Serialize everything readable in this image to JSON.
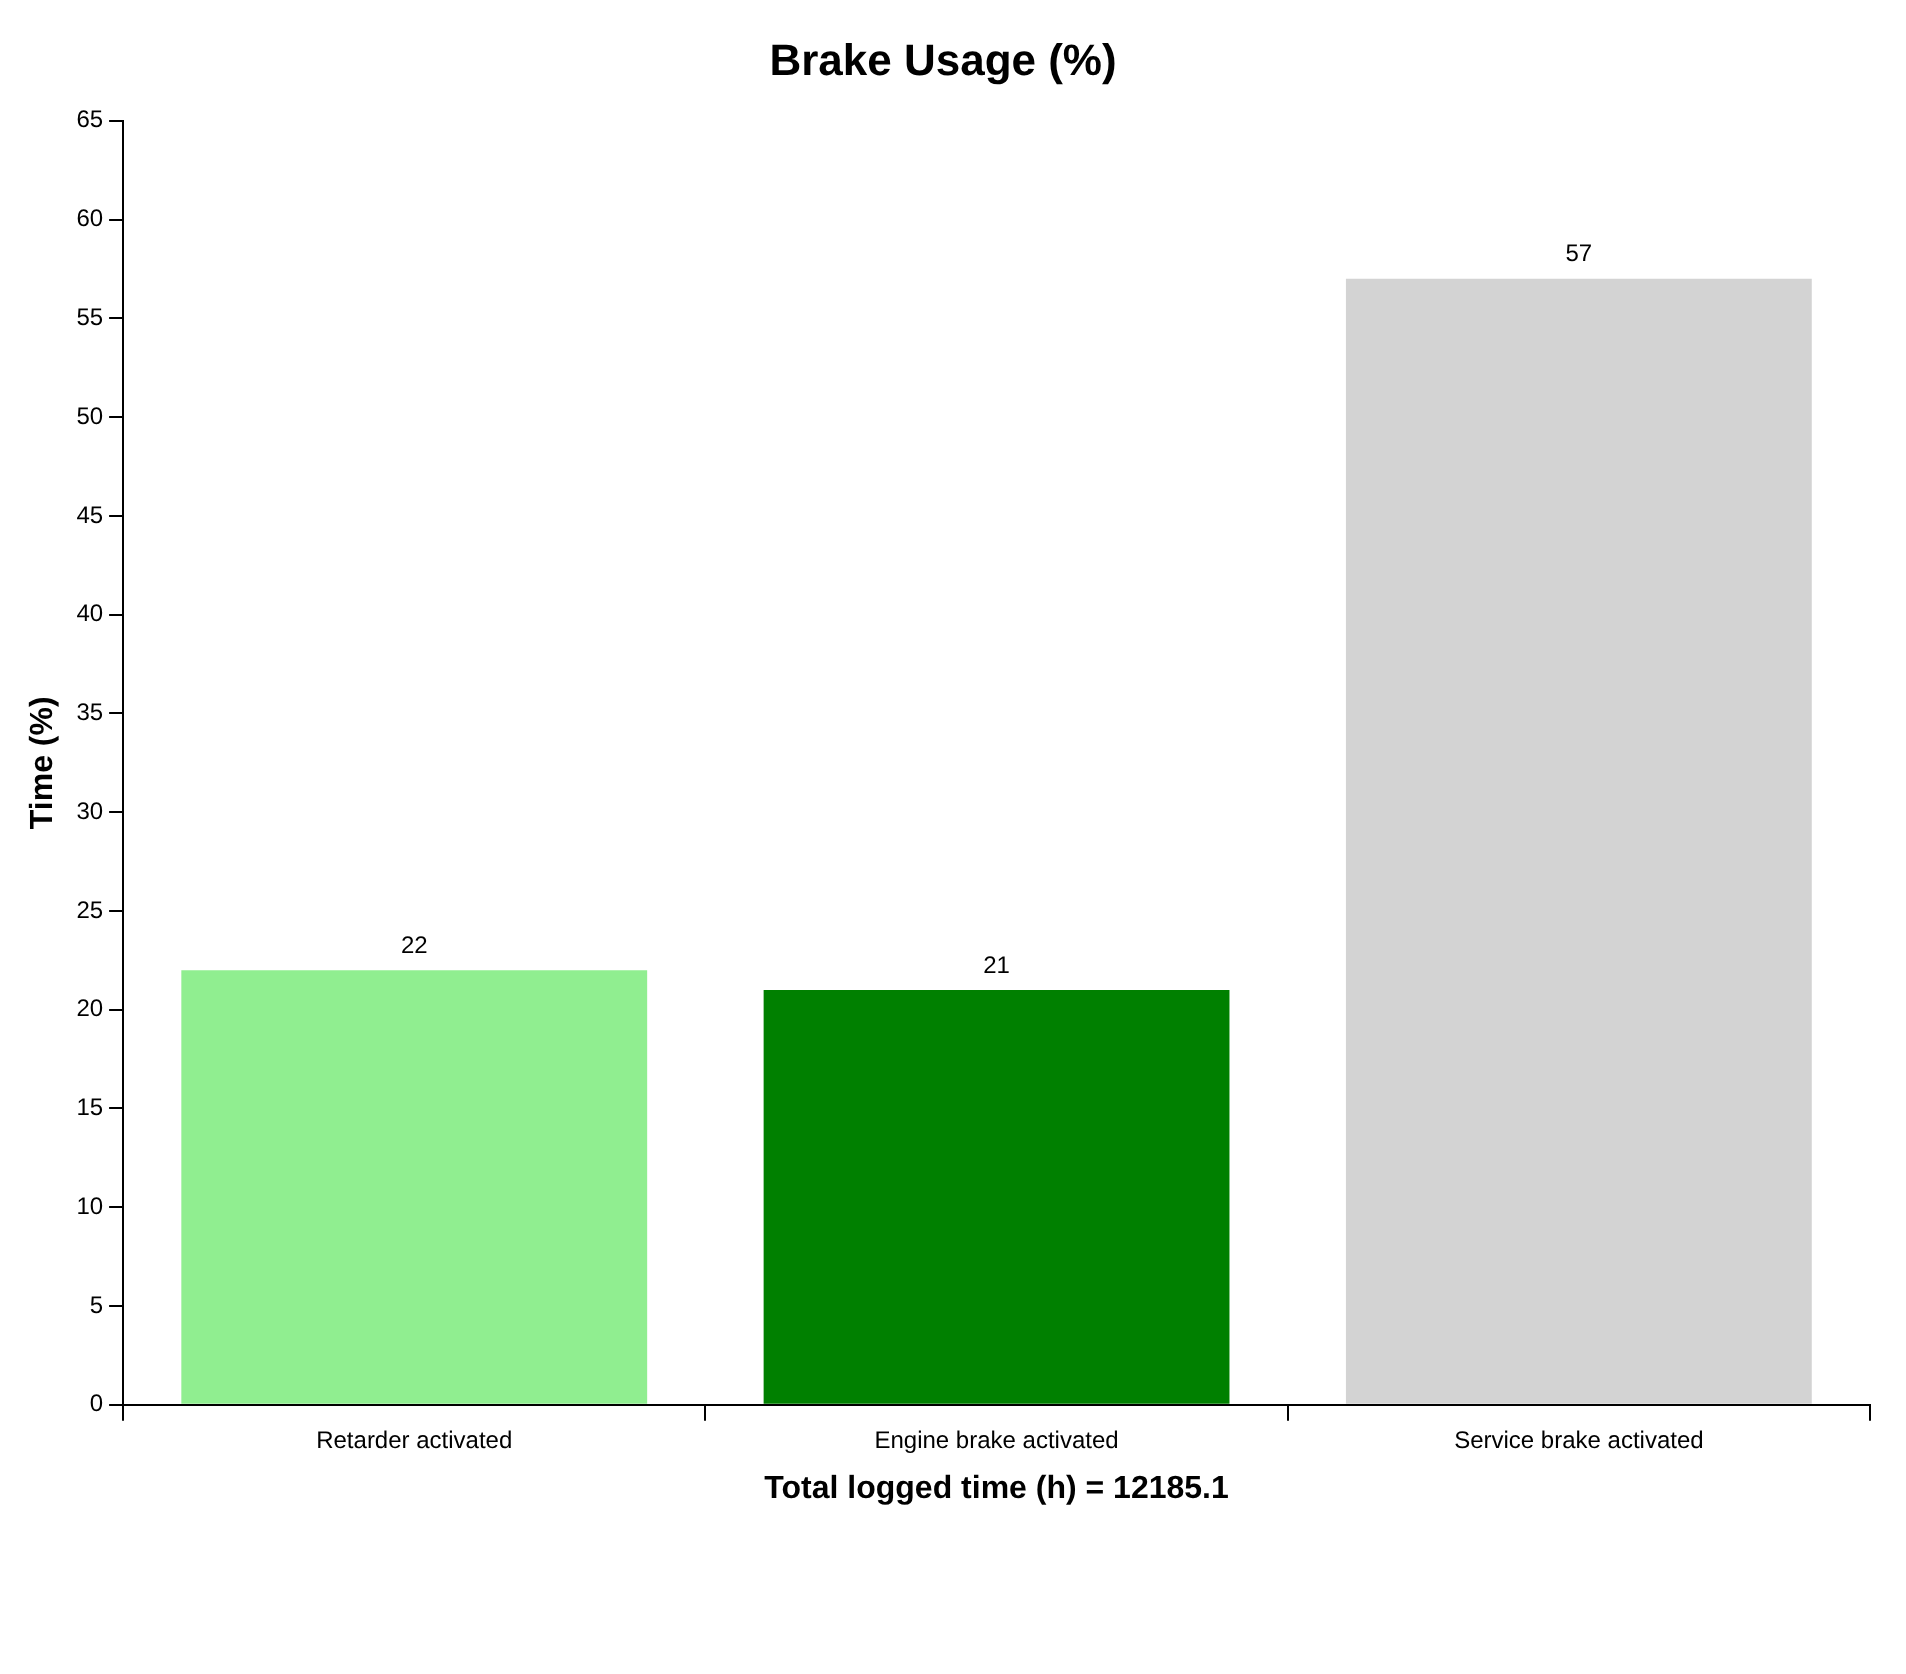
{
  "chart_data": {
    "type": "bar",
    "title": "Brake Usage (%)",
    "xlabel": "Total logged time (h) = 12185.1",
    "ylabel": "Time (%)",
    "categories": [
      "Retarder activated",
      "Engine brake activated",
      "Service brake activated"
    ],
    "values": [
      22,
      21,
      57
    ],
    "colors": [
      "#90ee90",
      "#008000",
      "#d3d3d3"
    ],
    "ylim": [
      0,
      65
    ],
    "yticks": [
      0,
      5,
      10,
      15,
      20,
      25,
      30,
      35,
      40,
      45,
      50,
      55,
      60,
      65
    ],
    "grid": false,
    "legend": false,
    "data_labels": true
  }
}
